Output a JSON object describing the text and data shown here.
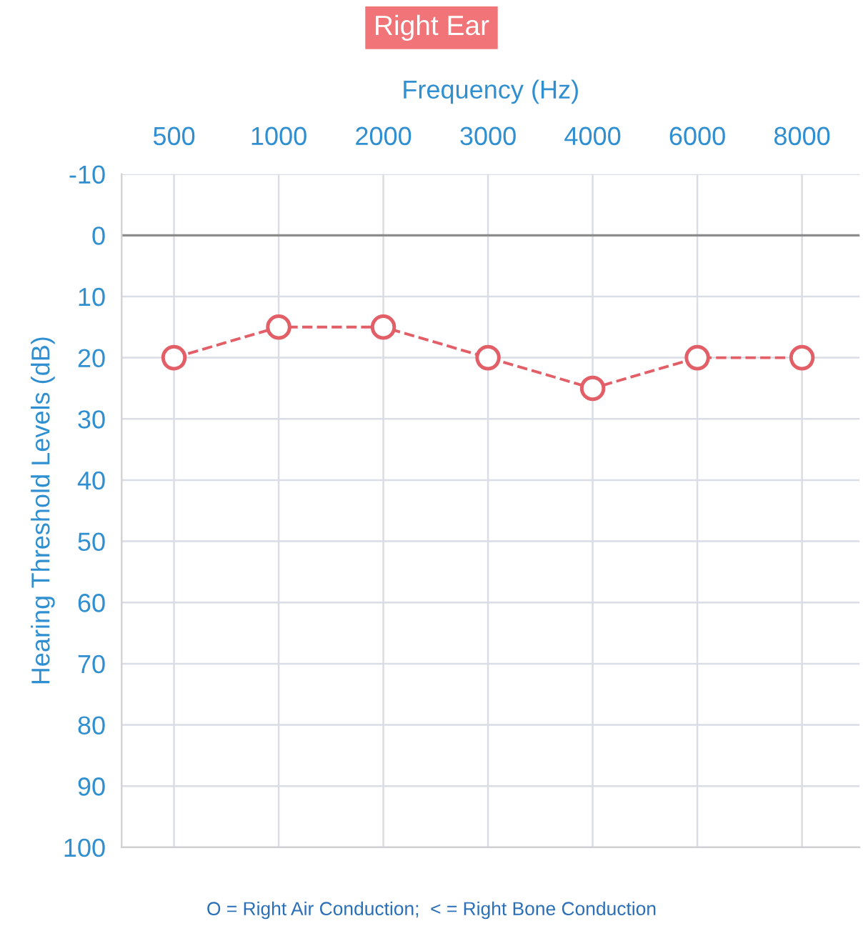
{
  "chart_data": {
    "type": "line",
    "title": "Right Ear",
    "xlabel": "Frequency (Hz)",
    "ylabel": "Hearing Threshold Levels (dB)",
    "categories": [
      "500",
      "1000",
      "2000",
      "3000",
      "4000",
      "6000",
      "8000"
    ],
    "series": [
      {
        "color": "#e35f68",
        "values": [
          20,
          15,
          15,
          20,
          25,
          20,
          20
        ]
      }
    ],
    "ylim": [
      100,
      -10
    ],
    "yticks": [
      -10,
      0,
      10,
      20,
      30,
      40,
      50,
      60,
      70,
      80,
      90,
      100
    ],
    "grid": true,
    "marker": "circle",
    "line_style": "dashed",
    "ref_lines": [
      {
        "axis": "y",
        "value": 0,
        "color": "#8c8c8c"
      }
    ],
    "annotations": [
      "O = Right Air Conduction;  < = Right Bone Conduction"
    ]
  }
}
